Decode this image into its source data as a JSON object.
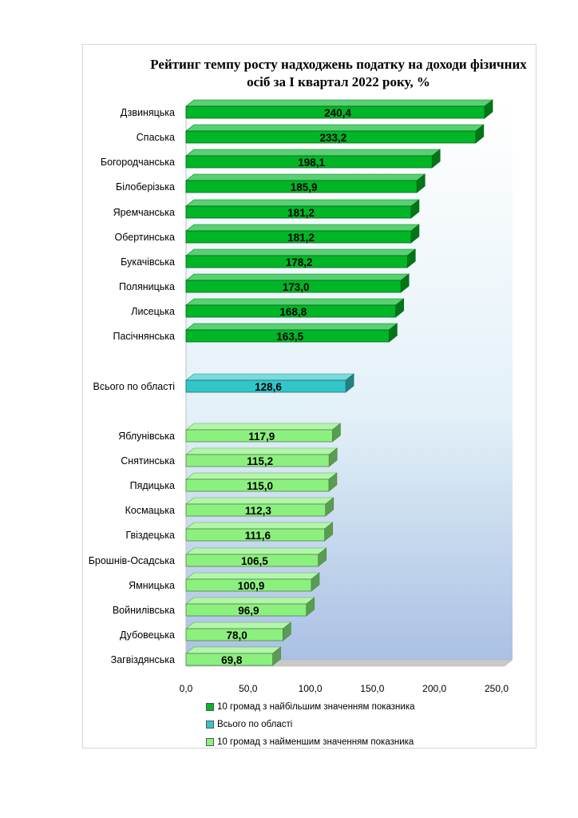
{
  "chart_data": {
    "type": "bar",
    "orientation": "horizontal",
    "title_line1": "Рейтинг темпу росту надходжень податку на доходи фізичних",
    "title_line2": "осіб  за І  квартал  2022 року, %",
    "xlim": [
      0,
      250
    ],
    "x_ticks": [
      "0,0",
      "50,0",
      "100,0",
      "150,0",
      "200,0",
      "250,0"
    ],
    "x_tick_values": [
      0,
      50,
      100,
      150,
      200,
      250
    ],
    "groups": [
      {
        "name": "10 громад з найбільшим значенням показника",
        "color": "#00b627",
        "categories": [
          "Дзвиняцька",
          "Спаська",
          "Богородчанська",
          "Білоберізька",
          "Яремчанська",
          "Обертинська",
          "Букачівська",
          "Поляницька",
          "Лисецька",
          "Пасічнянська"
        ],
        "values": [
          240.4,
          233.2,
          198.1,
          185.9,
          181.2,
          181.2,
          178.2,
          173.0,
          168.8,
          163.5
        ],
        "labels": [
          "240,4",
          "233,2",
          "198,1",
          "185,9",
          "181,2",
          "181,2",
          "178,2",
          "173,0",
          "168,8",
          "163,5"
        ]
      },
      {
        "name": "Всього по області",
        "color": "#33c6c9",
        "categories": [
          "Всього по області"
        ],
        "values": [
          128.6
        ],
        "labels": [
          "128,6"
        ]
      },
      {
        "name": "10 громад з найменшим значенням показника",
        "color": "#8cf07f",
        "categories": [
          "Яблунівська",
          "Снятинська",
          "Пядицька",
          "Космацька",
          "Гвіздецька",
          "Брошнів-Осадська",
          "Ямницька",
          "Войнилівська",
          "Дубовецька",
          "Загвіздянська"
        ],
        "values": [
          117.9,
          115.2,
          115.0,
          112.3,
          111.6,
          106.5,
          100.9,
          96.9,
          78.0,
          69.8
        ],
        "labels": [
          "117,9",
          "115,2",
          "115,0",
          "112,3",
          "111,6",
          "106,5",
          "100,9",
          "96,9",
          "78,0",
          "69,8"
        ]
      }
    ],
    "legend_position": "bottom"
  }
}
